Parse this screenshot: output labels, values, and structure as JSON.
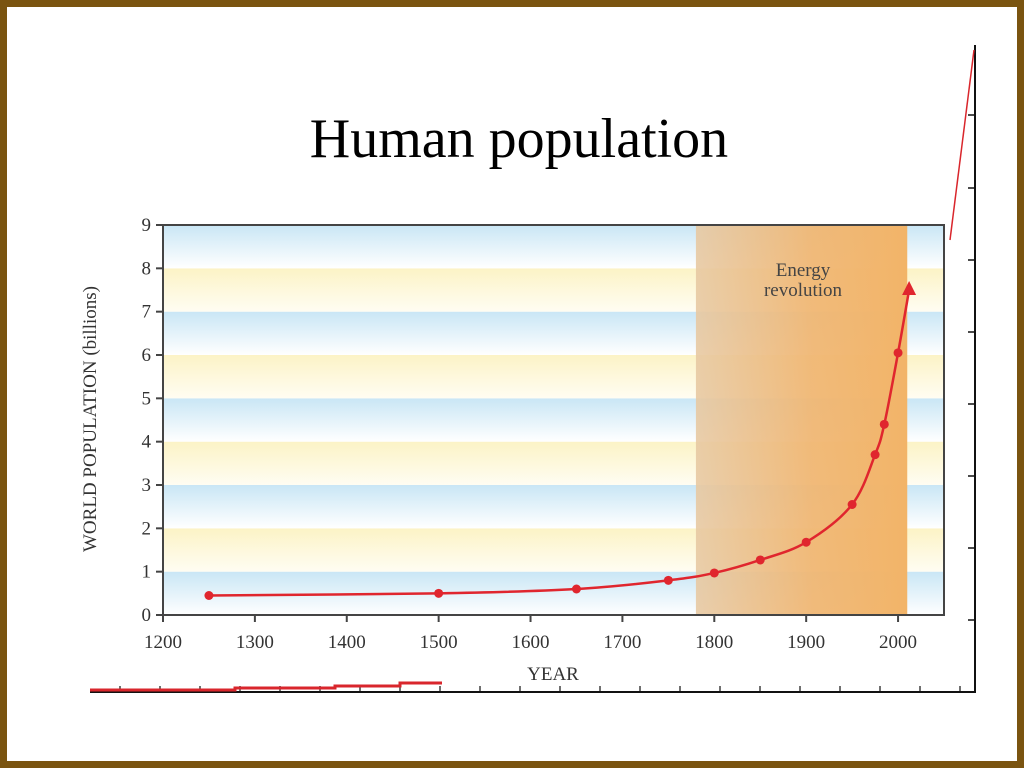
{
  "slide": {
    "title": "Human population"
  },
  "colors": {
    "frame": "#7a5410",
    "line": "#e0262e",
    "band_blue": "#c9e6f5",
    "band_yellow": "#fcf3c6",
    "energy_region": "#f2b468"
  },
  "chart_data": {
    "type": "line",
    "title": "",
    "xlabel": "YEAR",
    "ylabel": "WORLD POPULATION (billions)",
    "xlim": [
      1200,
      2050
    ],
    "ylim": [
      0,
      9
    ],
    "x_ticks": [
      1200,
      1300,
      1400,
      1500,
      1600,
      1700,
      1800,
      1900,
      2000
    ],
    "y_ticks": [
      0,
      1,
      2,
      3,
      4,
      5,
      6,
      7,
      8,
      9
    ],
    "grid": false,
    "series": [
      {
        "points": [
          {
            "x": 1250,
            "y": 0.45
          },
          {
            "x": 1500,
            "y": 0.5
          },
          {
            "x": 1650,
            "y": 0.6
          },
          {
            "x": 1750,
            "y": 0.8
          },
          {
            "x": 1800,
            "y": 0.97
          },
          {
            "x": 1850,
            "y": 1.27
          },
          {
            "x": 1900,
            "y": 1.68
          },
          {
            "x": 1950,
            "y": 2.55
          },
          {
            "x": 1975,
            "y": 3.7
          },
          {
            "x": 1985,
            "y": 4.4
          },
          {
            "x": 2000,
            "y": 6.05
          }
        ],
        "end_arrow": {
          "x": 2012,
          "y": 7.5
        }
      }
    ],
    "shaded_region": {
      "x0": 1780,
      "x1": 2010,
      "label_lines": [
        "Energy",
        "revolution"
      ]
    }
  }
}
